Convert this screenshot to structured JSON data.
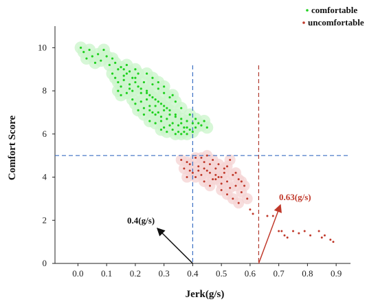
{
  "chart_data": {
    "type": "scatter",
    "xlabel": "Jerk(g/s)",
    "ylabel": "Comfort Score",
    "xlim": [
      -0.08,
      0.95
    ],
    "ylim": [
      0,
      11
    ],
    "x_ticks": [
      "0.0",
      "0.1",
      "0.2",
      "0.3",
      "0.4",
      "0.5",
      "0.6",
      "0.7",
      "0.8",
      "0.9"
    ],
    "y_ticks": [
      "0",
      "2",
      "4",
      "6",
      "8",
      "10"
    ],
    "grid": false,
    "legend_position": "top-right",
    "colors": {
      "comfortable": "#1fd11f",
      "comfortable_halo": "#cdf5cd",
      "uncomfortable": "#c0392b",
      "uncomfortable_halo": "#f5d5d5",
      "threshold_blue": "#3a6fc4",
      "threshold_red": "#b03a2e",
      "arrow_black": "#111111",
      "arrow_red": "#c0392b"
    },
    "series": [
      {
        "name": "comfortable",
        "points": [
          [
            0.01,
            10.0
          ],
          [
            0.02,
            9.8
          ],
          [
            0.03,
            9.5
          ],
          [
            0.04,
            9.9
          ],
          [
            0.05,
            9.6
          ],
          [
            0.06,
            9.3
          ],
          [
            0.07,
            9.7
          ],
          [
            0.08,
            9.4
          ],
          [
            0.09,
            9.9
          ],
          [
            0.1,
            9.6
          ],
          [
            0.11,
            9.2
          ],
          [
            0.12,
            9.5
          ],
          [
            0.13,
            9.3
          ],
          [
            0.14,
            9.0
          ],
          [
            0.15,
            9.1
          ],
          [
            0.12,
            8.8
          ],
          [
            0.13,
            8.6
          ],
          [
            0.14,
            8.4
          ],
          [
            0.15,
            8.2
          ],
          [
            0.16,
            8.5
          ],
          [
            0.17,
            8.8
          ],
          [
            0.18,
            8.3
          ],
          [
            0.19,
            8.0
          ],
          [
            0.2,
            8.6
          ],
          [
            0.21,
            8.2
          ],
          [
            0.22,
            7.9
          ],
          [
            0.18,
            8.9
          ],
          [
            0.16,
            9.0
          ],
          [
            0.19,
            8.6
          ],
          [
            0.21,
            8.8
          ],
          [
            0.23,
            8.4
          ],
          [
            0.24,
            8.0
          ],
          [
            0.25,
            7.8
          ],
          [
            0.26,
            8.3
          ],
          [
            0.27,
            7.6
          ],
          [
            0.28,
            8.1
          ],
          [
            0.29,
            7.4
          ],
          [
            0.3,
            7.9
          ],
          [
            0.31,
            7.2
          ],
          [
            0.32,
            7.7
          ],
          [
            0.22,
            7.5
          ],
          [
            0.23,
            7.2
          ],
          [
            0.24,
            7.6
          ],
          [
            0.25,
            7.3
          ],
          [
            0.26,
            7.0
          ],
          [
            0.27,
            7.3
          ],
          [
            0.28,
            7.0
          ],
          [
            0.29,
            6.8
          ],
          [
            0.3,
            7.1
          ],
          [
            0.31,
            6.7
          ],
          [
            0.32,
            6.9
          ],
          [
            0.33,
            6.5
          ],
          [
            0.34,
            6.9
          ],
          [
            0.35,
            6.4
          ],
          [
            0.36,
            6.7
          ],
          [
            0.37,
            6.3
          ],
          [
            0.38,
            6.6
          ],
          [
            0.39,
            6.2
          ],
          [
            0.4,
            6.5
          ],
          [
            0.41,
            6.3
          ],
          [
            0.3,
            6.3
          ],
          [
            0.31,
            6.1
          ],
          [
            0.32,
            6.4
          ],
          [
            0.33,
            6.2
          ],
          [
            0.34,
            6.0
          ],
          [
            0.35,
            6.1
          ],
          [
            0.36,
            6.0
          ],
          [
            0.37,
            6.1
          ],
          [
            0.38,
            6.0
          ],
          [
            0.42,
            6.5
          ],
          [
            0.43,
            6.4
          ],
          [
            0.44,
            6.6
          ],
          [
            0.45,
            6.3
          ],
          [
            0.41,
            6.7
          ],
          [
            0.39,
            6.9
          ],
          [
            0.36,
            7.2
          ],
          [
            0.34,
            7.5
          ],
          [
            0.33,
            7.8
          ],
          [
            0.3,
            8.2
          ],
          [
            0.28,
            8.4
          ],
          [
            0.26,
            8.6
          ],
          [
            0.24,
            8.8
          ],
          [
            0.2,
            9.0
          ],
          [
            0.17,
            9.2
          ],
          [
            0.14,
            8.0
          ],
          [
            0.15,
            7.8
          ],
          [
            0.17,
            7.9
          ],
          [
            0.19,
            7.6
          ],
          [
            0.2,
            7.4
          ],
          [
            0.21,
            7.1
          ],
          [
            0.23,
            6.9
          ],
          [
            0.25,
            6.6
          ],
          [
            0.27,
            6.5
          ],
          [
            0.29,
            6.2
          ],
          [
            0.16,
            8.7
          ],
          [
            0.18,
            8.1
          ],
          [
            0.2,
            8.4
          ],
          [
            0.22,
            8.1
          ],
          [
            0.24,
            7.9
          ],
          [
            0.26,
            7.7
          ],
          [
            0.28,
            7.5
          ],
          [
            0.3,
            7.3
          ],
          [
            0.32,
            7.1
          ],
          [
            0.34,
            6.8
          ],
          [
            0.36,
            6.5
          ],
          [
            0.38,
            6.3
          ],
          [
            0.4,
            6.1
          ],
          [
            0.25,
            7.1
          ],
          [
            0.27,
            6.9
          ],
          [
            0.29,
            6.6
          ]
        ]
      },
      {
        "name": "uncomfortable",
        "points": [
          [
            0.36,
            4.8
          ],
          [
            0.37,
            4.4
          ],
          [
            0.38,
            4.0
          ],
          [
            0.39,
            4.6
          ],
          [
            0.4,
            4.2
          ],
          [
            0.41,
            4.9
          ],
          [
            0.42,
            4.5
          ],
          [
            0.43,
            4.1
          ],
          [
            0.44,
            4.7
          ],
          [
            0.45,
            4.3
          ],
          [
            0.46,
            4.6
          ],
          [
            0.47,
            3.9
          ],
          [
            0.48,
            4.4
          ],
          [
            0.49,
            4.0
          ],
          [
            0.5,
            3.7
          ],
          [
            0.51,
            4.2
          ],
          [
            0.52,
            3.8
          ],
          [
            0.53,
            3.5
          ],
          [
            0.54,
            4.1
          ],
          [
            0.55,
            3.6
          ],
          [
            0.56,
            3.9
          ],
          [
            0.57,
            3.3
          ],
          [
            0.58,
            3.6
          ],
          [
            0.59,
            3.0
          ],
          [
            0.6,
            2.5
          ],
          [
            0.61,
            2.3
          ],
          [
            0.43,
            4.9
          ],
          [
            0.45,
            5.0
          ],
          [
            0.47,
            4.8
          ],
          [
            0.49,
            4.6
          ],
          [
            0.51,
            4.4
          ],
          [
            0.53,
            4.8
          ],
          [
            0.55,
            4.2
          ],
          [
            0.57,
            3.8
          ],
          [
            0.41,
            4.0
          ],
          [
            0.44,
            3.8
          ],
          [
            0.46,
            3.6
          ],
          [
            0.48,
            3.9
          ],
          [
            0.5,
            3.4
          ],
          [
            0.52,
            3.2
          ],
          [
            0.54,
            3.0
          ],
          [
            0.56,
            2.8
          ],
          [
            0.39,
            4.3
          ],
          [
            0.38,
            4.7
          ],
          [
            0.42,
            4.3
          ],
          [
            0.44,
            4.4
          ],
          [
            0.46,
            4.2
          ],
          [
            0.48,
            4.1
          ],
          [
            0.5,
            4.0
          ],
          [
            0.52,
            4.5
          ],
          [
            0.66,
            2.2
          ],
          [
            0.68,
            2.2
          ],
          [
            0.7,
            1.5
          ],
          [
            0.71,
            1.5
          ],
          [
            0.72,
            1.3
          ],
          [
            0.73,
            1.2
          ],
          [
            0.75,
            1.5
          ],
          [
            0.77,
            1.4
          ],
          [
            0.79,
            1.5
          ],
          [
            0.81,
            1.3
          ],
          [
            0.84,
            1.5
          ],
          [
            0.86,
            1.3
          ],
          [
            0.88,
            1.1
          ],
          [
            0.89,
            1.0
          ],
          [
            0.85,
            1.2
          ]
        ]
      }
    ],
    "thresholds": {
      "horizontal_y": 5,
      "vertical_blue_x": 0.4,
      "vertical_red_x": 0.63
    },
    "annotations": [
      {
        "text": "0.4(g/s)",
        "points_to_x": 0.4,
        "points_to_y": 0,
        "color": "#111111"
      },
      {
        "text": "0.63(g/s)",
        "points_to_x": 0.63,
        "points_to_y": 0,
        "color": "#c0392b"
      }
    ]
  }
}
